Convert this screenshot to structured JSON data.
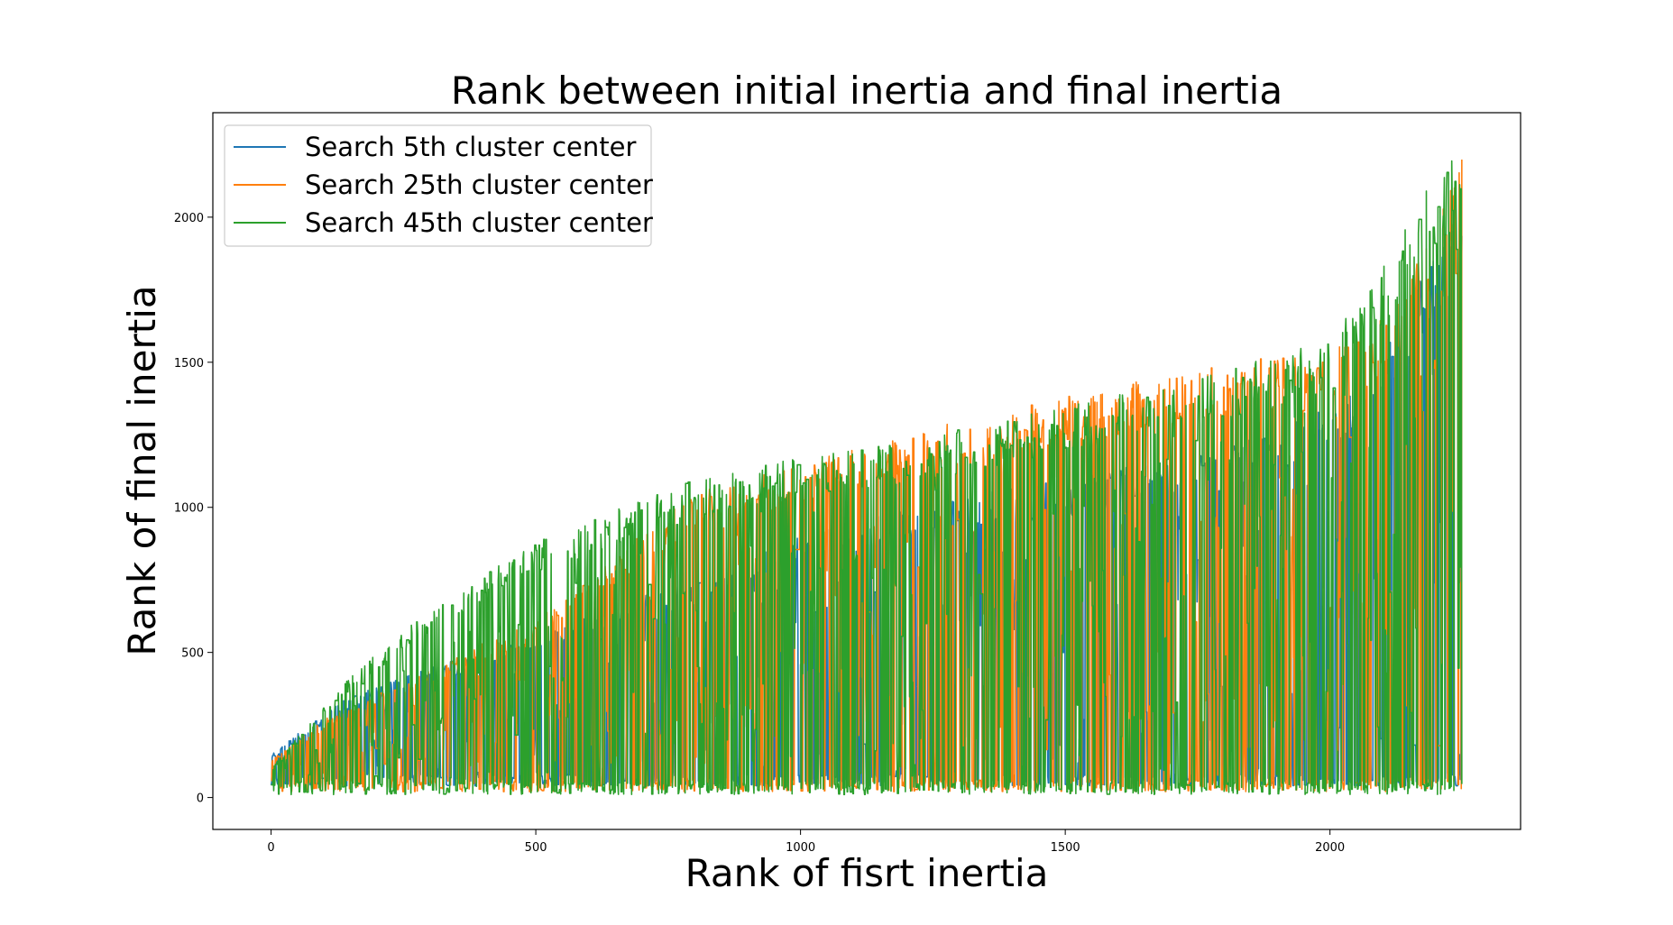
{
  "chart_data": {
    "type": "line",
    "title": "Rank between initial inertia and final inertia",
    "xlabel": "Rank of fisrt inertia",
    "ylabel": "Rank of final inertia",
    "xlim": [
      -110,
      2360
    ],
    "ylim": [
      -110,
      2360
    ],
    "x_ticks": [
      0,
      500,
      1000,
      1500,
      2000
    ],
    "y_ticks": [
      0,
      500,
      1000,
      1500,
      2000
    ],
    "grid": false,
    "legend_position": "upper-left",
    "n_points": 2250,
    "series": [
      {
        "name": "Search 5th cluster center",
        "color": "#1f77b4",
        "envelope": [
          {
            "x": 0,
            "y": 150
          },
          {
            "x": 130,
            "y": 330
          },
          {
            "x": 250,
            "y": 420
          },
          {
            "x": 500,
            "y": 560
          },
          {
            "x": 800,
            "y": 760
          },
          {
            "x": 1000,
            "y": 900
          },
          {
            "x": 1200,
            "y": 1000
          },
          {
            "x": 1500,
            "y": 1100
          },
          {
            "x": 1800,
            "y": 1200
          },
          {
            "x": 2000,
            "y": 1350
          },
          {
            "x": 2100,
            "y": 1550
          },
          {
            "x": 2200,
            "y": 1880
          },
          {
            "x": 2250,
            "y": 2080
          }
        ],
        "floor": 40
      },
      {
        "name": "Search 25th cluster center",
        "color": "#ff7f0e",
        "envelope": [
          {
            "x": 0,
            "y": 130
          },
          {
            "x": 100,
            "y": 270
          },
          {
            "x": 250,
            "y": 400
          },
          {
            "x": 500,
            "y": 620
          },
          {
            "x": 800,
            "y": 1050
          },
          {
            "x": 1000,
            "y": 1150
          },
          {
            "x": 1200,
            "y": 1260
          },
          {
            "x": 1500,
            "y": 1380
          },
          {
            "x": 1800,
            "y": 1500
          },
          {
            "x": 2000,
            "y": 1550
          },
          {
            "x": 2100,
            "y": 1650
          },
          {
            "x": 2200,
            "y": 1950
          },
          {
            "x": 2250,
            "y": 2250
          }
        ],
        "floor": 20
      },
      {
        "name": "Search 45th cluster center",
        "color": "#2ca02c",
        "envelope": [
          {
            "x": 0,
            "y": 100
          },
          {
            "x": 150,
            "y": 420
          },
          {
            "x": 300,
            "y": 650
          },
          {
            "x": 500,
            "y": 880
          },
          {
            "x": 800,
            "y": 1100
          },
          {
            "x": 1000,
            "y": 1180
          },
          {
            "x": 1200,
            "y": 1230
          },
          {
            "x": 1500,
            "y": 1350
          },
          {
            "x": 1800,
            "y": 1470
          },
          {
            "x": 2000,
            "y": 1580
          },
          {
            "x": 2100,
            "y": 1850
          },
          {
            "x": 2200,
            "y": 2150
          },
          {
            "x": 2250,
            "y": 2250
          }
        ],
        "floor": 10,
        "x_max": 2250
      }
    ]
  }
}
